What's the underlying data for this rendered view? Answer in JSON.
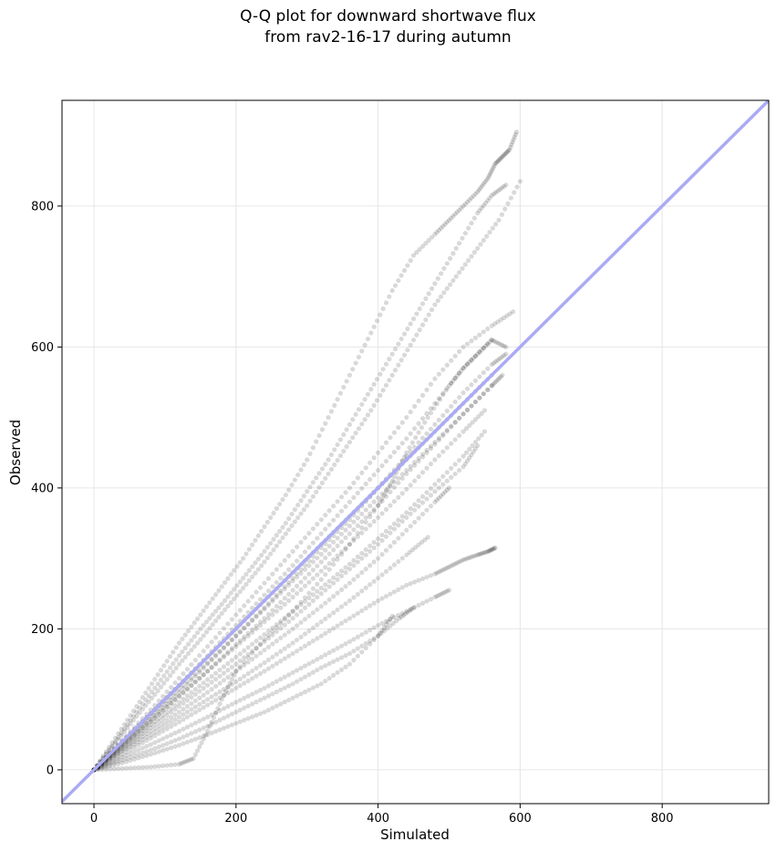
{
  "chart_data": {
    "type": "scatter",
    "title_lines": [
      "Q-Q plot for downward shortwave flux",
      "from rav2-16-17 during autumn"
    ],
    "xlabel": "Simulated",
    "ylabel": "Observed",
    "xlim": [
      -45,
      950
    ],
    "ylim": [
      -48,
      950
    ],
    "xticks": [
      0,
      200,
      400,
      600,
      800
    ],
    "yticks": [
      0,
      200,
      400,
      600,
      800
    ],
    "grid": true,
    "legend": "none",
    "reference_line": {
      "slope": 1,
      "intercept": 0,
      "color": "#aaaaf5"
    },
    "point_color": "#000000",
    "point_alpha": 0.15,
    "series": [
      {
        "x": [
          0,
          30,
          60,
          90,
          120,
          150,
          180,
          210,
          240,
          270,
          300,
          330,
          360,
          390,
          420,
          450,
          480,
          500,
          520,
          540,
          555,
          565,
          575,
          585,
          595
        ],
        "y": [
          0,
          45,
          90,
          135,
          180,
          220,
          260,
          300,
          345,
          390,
          440,
          500,
          560,
          620,
          680,
          730,
          760,
          780,
          800,
          820,
          840,
          860,
          870,
          880,
          905
        ]
      },
      {
        "x": [
          0,
          30,
          60,
          90,
          120,
          150,
          180,
          210,
          240,
          270,
          300,
          330,
          360,
          390,
          420,
          450,
          480,
          510,
          540,
          560,
          580
        ],
        "y": [
          0,
          40,
          82,
          122,
          162,
          200,
          235,
          272,
          310,
          350,
          395,
          440,
          490,
          540,
          590,
          640,
          690,
          740,
          790,
          815,
          830
        ]
      },
      {
        "x": [
          0,
          30,
          60,
          90,
          120,
          150,
          180,
          210,
          240,
          270,
          300,
          330,
          360,
          390,
          420,
          450,
          480,
          510,
          540,
          570,
          600
        ],
        "y": [
          0,
          38,
          76,
          112,
          150,
          185,
          222,
          258,
          295,
          335,
          375,
          420,
          465,
          510,
          560,
          610,
          660,
          700,
          740,
          780,
          835
        ]
      },
      {
        "x": [
          0,
          40,
          80,
          120,
          160,
          200,
          240,
          280,
          320,
          360,
          400,
          440,
          480,
          520,
          560,
          590
        ],
        "y": [
          0,
          42,
          85,
          130,
          175,
          220,
          265,
          310,
          355,
          400,
          450,
          500,
          555,
          600,
          630,
          650
        ]
      },
      {
        "x": [
          0,
          40,
          80,
          120,
          160,
          200,
          240,
          280,
          320,
          360,
          400,
          440,
          480,
          520,
          560,
          580
        ],
        "y": [
          0,
          40,
          80,
          120,
          162,
          205,
          248,
          290,
          335,
          380,
          425,
          470,
          520,
          570,
          610,
          600
        ]
      },
      {
        "x": [
          0,
          40,
          80,
          120,
          160,
          200,
          240,
          280,
          320,
          360,
          400,
          440,
          480,
          520,
          560,
          580
        ],
        "y": [
          0,
          36,
          72,
          110,
          150,
          190,
          230,
          272,
          315,
          355,
          400,
          445,
          490,
          535,
          575,
          590
        ]
      },
      {
        "x": [
          0,
          40,
          80,
          120,
          160,
          200,
          240,
          280,
          320,
          360,
          400,
          440,
          480,
          520,
          560,
          575
        ],
        "y": [
          0,
          34,
          68,
          104,
          140,
          178,
          215,
          255,
          295,
          335,
          375,
          420,
          462,
          505,
          545,
          560
        ]
      },
      {
        "x": [
          0,
          40,
          80,
          120,
          160,
          200,
          240,
          280,
          320,
          360,
          400,
          440,
          480,
          520,
          560
        ],
        "y": [
          0,
          40,
          80,
          120,
          160,
          200,
          240,
          280,
          320,
          360,
          400,
          440,
          480,
          520,
          560
        ]
      },
      {
        "x": [
          0,
          40,
          80,
          120,
          160,
          200,
          240,
          280,
          320,
          360,
          400,
          440,
          480,
          520,
          560
        ],
        "y": [
          0,
          38,
          76,
          114,
          152,
          190,
          228,
          268,
          306,
          346,
          386,
          425,
          465,
          505,
          545
        ]
      },
      {
        "x": [
          0,
          40,
          80,
          120,
          160,
          200,
          240,
          280,
          320,
          360,
          400,
          440,
          480,
          520,
          550
        ],
        "y": [
          0,
          35,
          70,
          105,
          140,
          175,
          210,
          245,
          282,
          320,
          358,
          398,
          440,
          480,
          510
        ]
      },
      {
        "x": [
          0,
          40,
          80,
          120,
          160,
          200,
          240,
          280,
          320,
          360,
          400,
          440,
          480,
          520,
          550
        ],
        "y": [
          0,
          32,
          64,
          96,
          128,
          160,
          192,
          225,
          258,
          292,
          328,
          365,
          405,
          445,
          480
        ]
      },
      {
        "x": [
          0,
          40,
          80,
          120,
          160,
          200,
          240,
          280,
          320,
          360,
          400,
          440,
          480,
          520,
          540
        ],
        "y": [
          0,
          30,
          60,
          90,
          120,
          150,
          182,
          215,
          250,
          285,
          320,
          358,
          395,
          430,
          460
        ]
      },
      {
        "x": [
          0,
          40,
          80,
          120,
          160,
          200,
          240,
          280,
          320,
          360,
          400,
          440,
          480,
          500
        ],
        "y": [
          0,
          28,
          55,
          82,
          110,
          140,
          170,
          200,
          232,
          265,
          300,
          340,
          380,
          400
        ]
      },
      {
        "x": [
          0,
          40,
          80,
          120,
          160,
          200,
          240,
          280,
          320,
          360,
          400,
          440,
          470
        ],
        "y": [
          0,
          26,
          50,
          75,
          100,
          125,
          152,
          180,
          210,
          240,
          272,
          305,
          330
        ]
      },
      {
        "x": [
          0,
          40,
          80,
          120,
          160,
          200,
          240,
          280,
          320,
          360,
          400,
          440,
          480,
          500,
          520,
          540,
          555,
          565
        ],
        "y": [
          0,
          22,
          45,
          68,
          92,
          116,
          140,
          165,
          190,
          215,
          240,
          262,
          278,
          288,
          298,
          305,
          310,
          315
        ]
      },
      {
        "x": [
          0,
          40,
          80,
          120,
          160,
          200,
          240,
          280,
          320,
          360,
          400,
          440,
          480,
          500
        ],
        "y": [
          0,
          18,
          36,
          55,
          75,
          96,
          116,
          138,
          160,
          182,
          205,
          225,
          245,
          255
        ]
      },
      {
        "x": [
          0,
          40,
          80,
          120,
          160,
          200,
          240,
          280,
          320,
          360,
          400,
          430,
          450
        ],
        "y": [
          0,
          14,
          28,
          44,
          62,
          82,
          102,
          122,
          145,
          165,
          190,
          215,
          230
        ]
      },
      {
        "x": [
          0,
          40,
          80,
          120,
          160,
          200,
          240,
          280,
          320,
          360,
          400,
          420
        ],
        "y": [
          0,
          10,
          22,
          35,
          50,
          66,
          82,
          102,
          122,
          150,
          190,
          218
        ]
      },
      {
        "x": [
          0,
          40,
          80,
          120,
          140,
          160,
          180,
          200,
          240,
          280,
          320,
          360,
          400,
          420,
          440,
          470,
          500,
          520,
          540,
          560
        ],
        "y": [
          0,
          2,
          4,
          8,
          16,
          55,
          100,
          140,
          185,
          225,
          270,
          320,
          375,
          410,
          450,
          500,
          545,
          570,
          590,
          610
        ]
      }
    ]
  }
}
